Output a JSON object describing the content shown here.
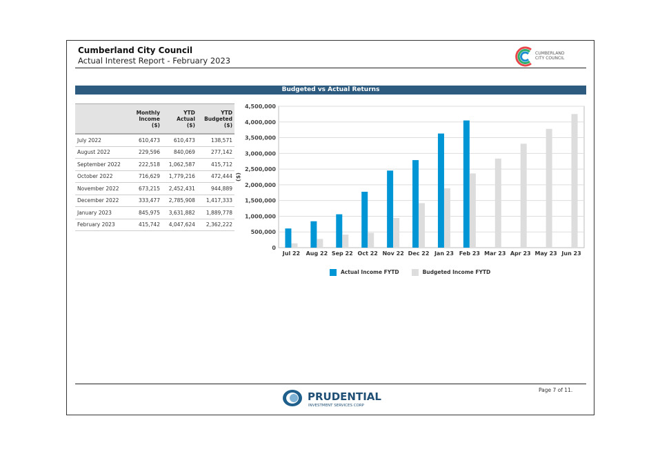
{
  "header": {
    "title": "Cumberland City Council",
    "subtitle": "Actual Interest Report - February 2023",
    "logo_text": "CUMBERLAND CITY COUNCIL"
  },
  "banner": "Budgeted vs Actual Returns",
  "table": {
    "headers": [
      [
        "",
        ""
      ],
      [
        "Monthly",
        "Income",
        "($)"
      ],
      [
        "YTD",
        "Actual",
        "($)"
      ],
      [
        "YTD",
        "Budgeted",
        "($)"
      ]
    ],
    "rows": [
      [
        "July 2022",
        "610,473",
        "610,473",
        "138,571"
      ],
      [
        "August 2022",
        "229,596",
        "840,069",
        "277,142"
      ],
      [
        "September 2022",
        "222,518",
        "1,062,587",
        "415,712"
      ],
      [
        "October 2022",
        "716,629",
        "1,779,216",
        "472,444"
      ],
      [
        "November 2022",
        "673,215",
        "2,452,431",
        "944,889"
      ],
      [
        "December 2022",
        "333,477",
        "2,785,908",
        "1,417,333"
      ],
      [
        "January 2023",
        "845,975",
        "3,631,882",
        "1,889,778"
      ],
      [
        "February 2023",
        "415,742",
        "4,047,624",
        "2,362,222"
      ]
    ]
  },
  "chart_data": {
    "type": "bar",
    "title": "Budgeted vs Actual Returns",
    "ylabel": "($)",
    "xlabel": "",
    "ylim": [
      0,
      4500000
    ],
    "yticks": [
      "0",
      "500,000",
      "1,000,000",
      "1,500,000",
      "2,000,000",
      "2,500,000",
      "3,000,000",
      "3,500,000",
      "4,000,000",
      "4,500,000"
    ],
    "categories": [
      "Jul 22",
      "Aug 22",
      "Sep 22",
      "Oct 22",
      "Nov 22",
      "Dec 22",
      "Jan 23",
      "Feb 23",
      "Mar 23",
      "Apr 23",
      "May 23",
      "Jun 23"
    ],
    "series": [
      {
        "name": "Actual Income FYTD",
        "color": "#0096d6",
        "values": [
          610473,
          840069,
          1062587,
          1779216,
          2452431,
          2785908,
          3631882,
          4047624,
          null,
          null,
          null,
          null
        ]
      },
      {
        "name": "Budgeted Income FYTD",
        "color": "#dddddd",
        "values": [
          138571,
          277142,
          415712,
          472444,
          944889,
          1417333,
          1889778,
          2362222,
          2834667,
          3307111,
          3779556,
          4252000
        ]
      }
    ],
    "legend": "bottom",
    "grid": true
  },
  "footer": {
    "company": "PRUDENTIAL",
    "company_sub": "INVESTMENT SERVICES CORP",
    "page": "Page 7 of 11."
  }
}
